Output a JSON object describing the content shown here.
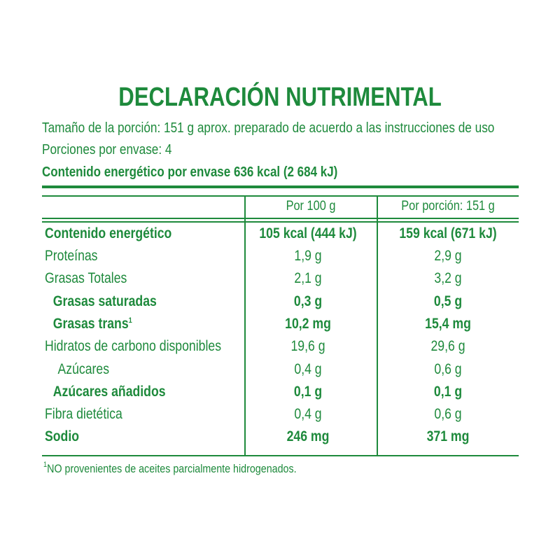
{
  "title": "DECLARACIÓN NUTRIMENTAL",
  "serving_size": "Tamaño de la porción: 151 g aprox. preparado de acuerdo a las instrucciones de uso",
  "servings_per_container": "Porciones por envase: 4",
  "energy_per_container": "Contenido energético por envase 636 kcal (2 684 kJ)",
  "columns": {
    "per_100g": "Por 100 g",
    "per_serving": "Por porción: 151 g"
  },
  "rows": [
    {
      "name": "Contenido energético",
      "per_100g": "105 kcal (444 kJ)",
      "per_serving": "159 kcal (671 kJ)"
    },
    {
      "name": "Proteínas",
      "per_100g": "1,9 g",
      "per_serving": "2,9 g"
    },
    {
      "name": "Grasas Totales",
      "per_100g": "2,1 g",
      "per_serving": "3,2 g"
    },
    {
      "name": "Grasas saturadas",
      "per_100g": "0,3 g",
      "per_serving": "0,5 g"
    },
    {
      "name": "Grasas trans",
      "sup": "1",
      "per_100g": "10,2 mg",
      "per_serving": "15,4 mg"
    },
    {
      "name": "Hidratos de carbono disponibles",
      "per_100g": "19,6 g",
      "per_serving": "29,6 g"
    },
    {
      "name": "Azúcares",
      "per_100g": "0,4 g",
      "per_serving": "0,6 g"
    },
    {
      "name": "Azúcares añadidos",
      "per_100g": "0,1 g",
      "per_serving": "0,1 g"
    },
    {
      "name": "Fibra dietética",
      "per_100g": "0,4 g",
      "per_serving": "0,6 g"
    },
    {
      "name": "Sodio",
      "per_100g": "246 mg",
      "per_serving": "371 mg"
    }
  ],
  "footnote_sup": "1",
  "footnote": "NO provenientes de aceites parcialmente hidrogenados.",
  "colors": {
    "text": "#1e8a3c",
    "background": "#ffffff"
  }
}
